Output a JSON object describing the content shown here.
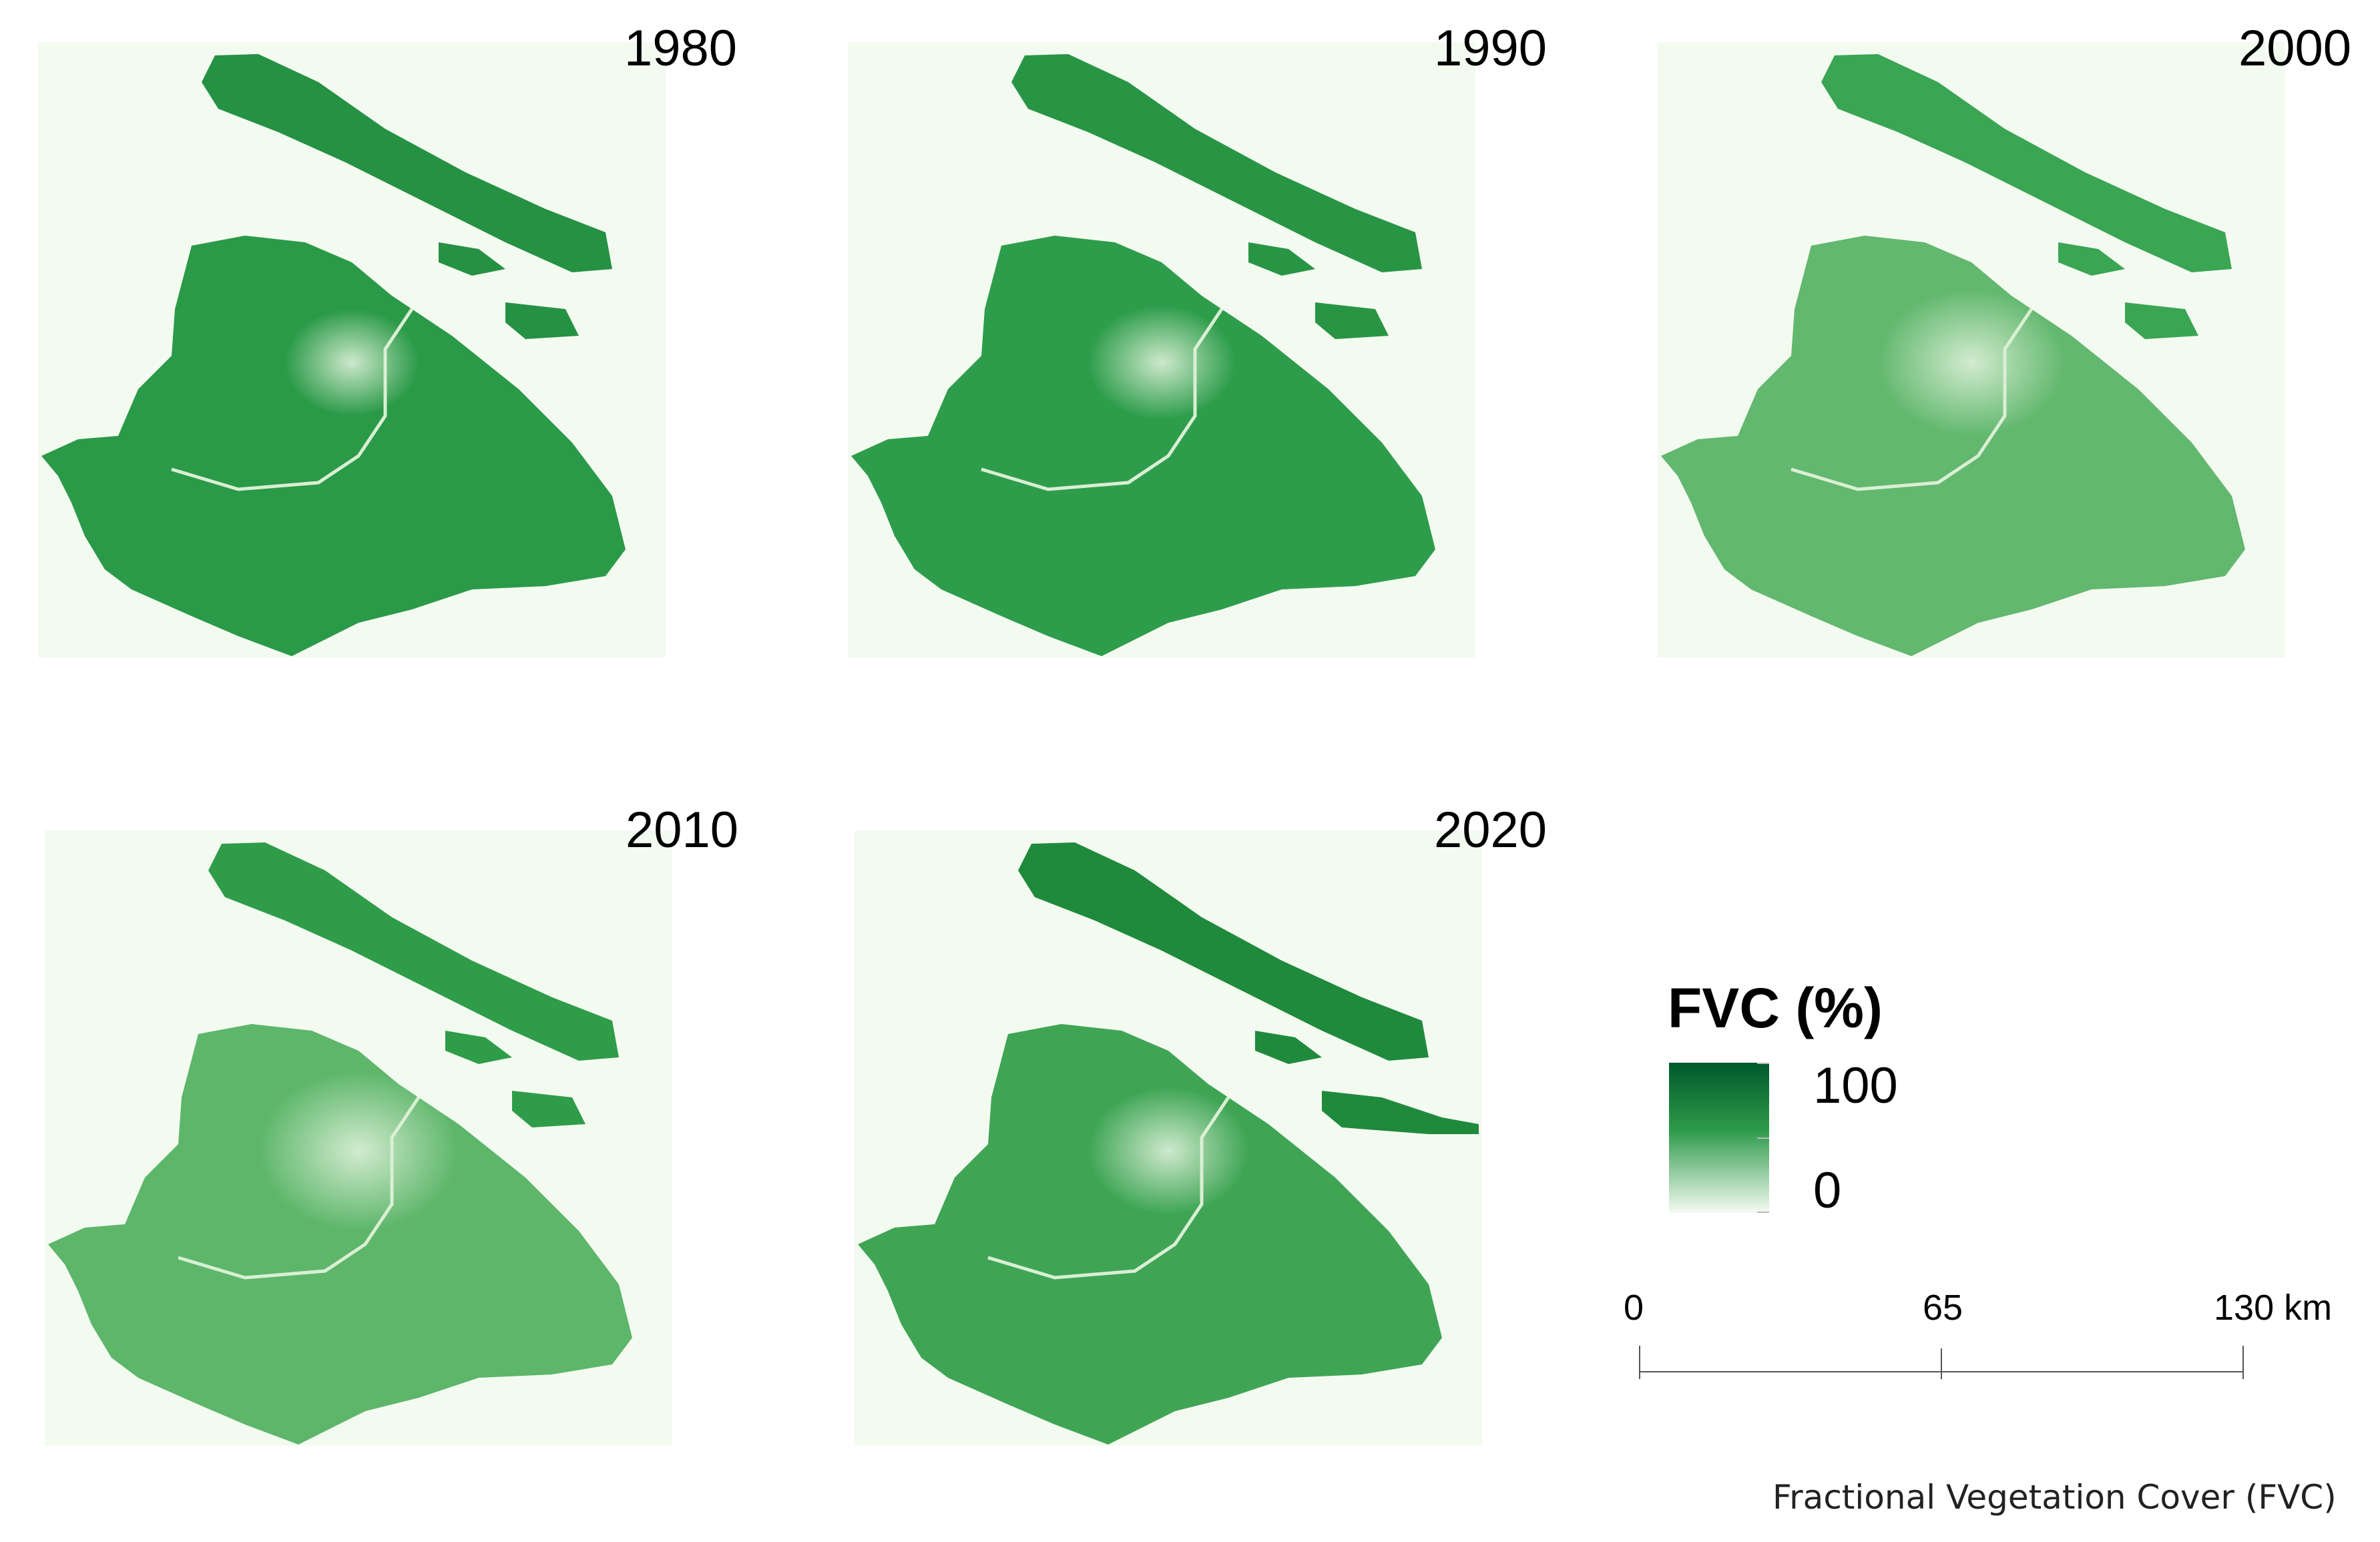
{
  "maps": [
    {
      "year": "1980",
      "tone": "#2b9a48",
      "north_tone": "#259143"
    },
    {
      "year": "1990",
      "tone": "#2e9d4b",
      "north_tone": "#289545"
    },
    {
      "year": "2000",
      "tone": "#62b86e",
      "north_tone": "#3aa553"
    },
    {
      "year": "2010",
      "tone": "#5db66a",
      "north_tone": "#2f9c4a"
    },
    {
      "year": "2020",
      "tone": "#3fa555",
      "north_tone": "#1f8a3c"
    }
  ],
  "legend": {
    "title": "FVC (%)",
    "max_label": "100",
    "min_label": "0",
    "color_high": "#00592a",
    "color_low": "#f2faef"
  },
  "scale_bar": {
    "labels": [
      "0",
      "65",
      "130 km"
    ]
  },
  "footer_text": "Fractional Vegetation Cover (FVC)"
}
